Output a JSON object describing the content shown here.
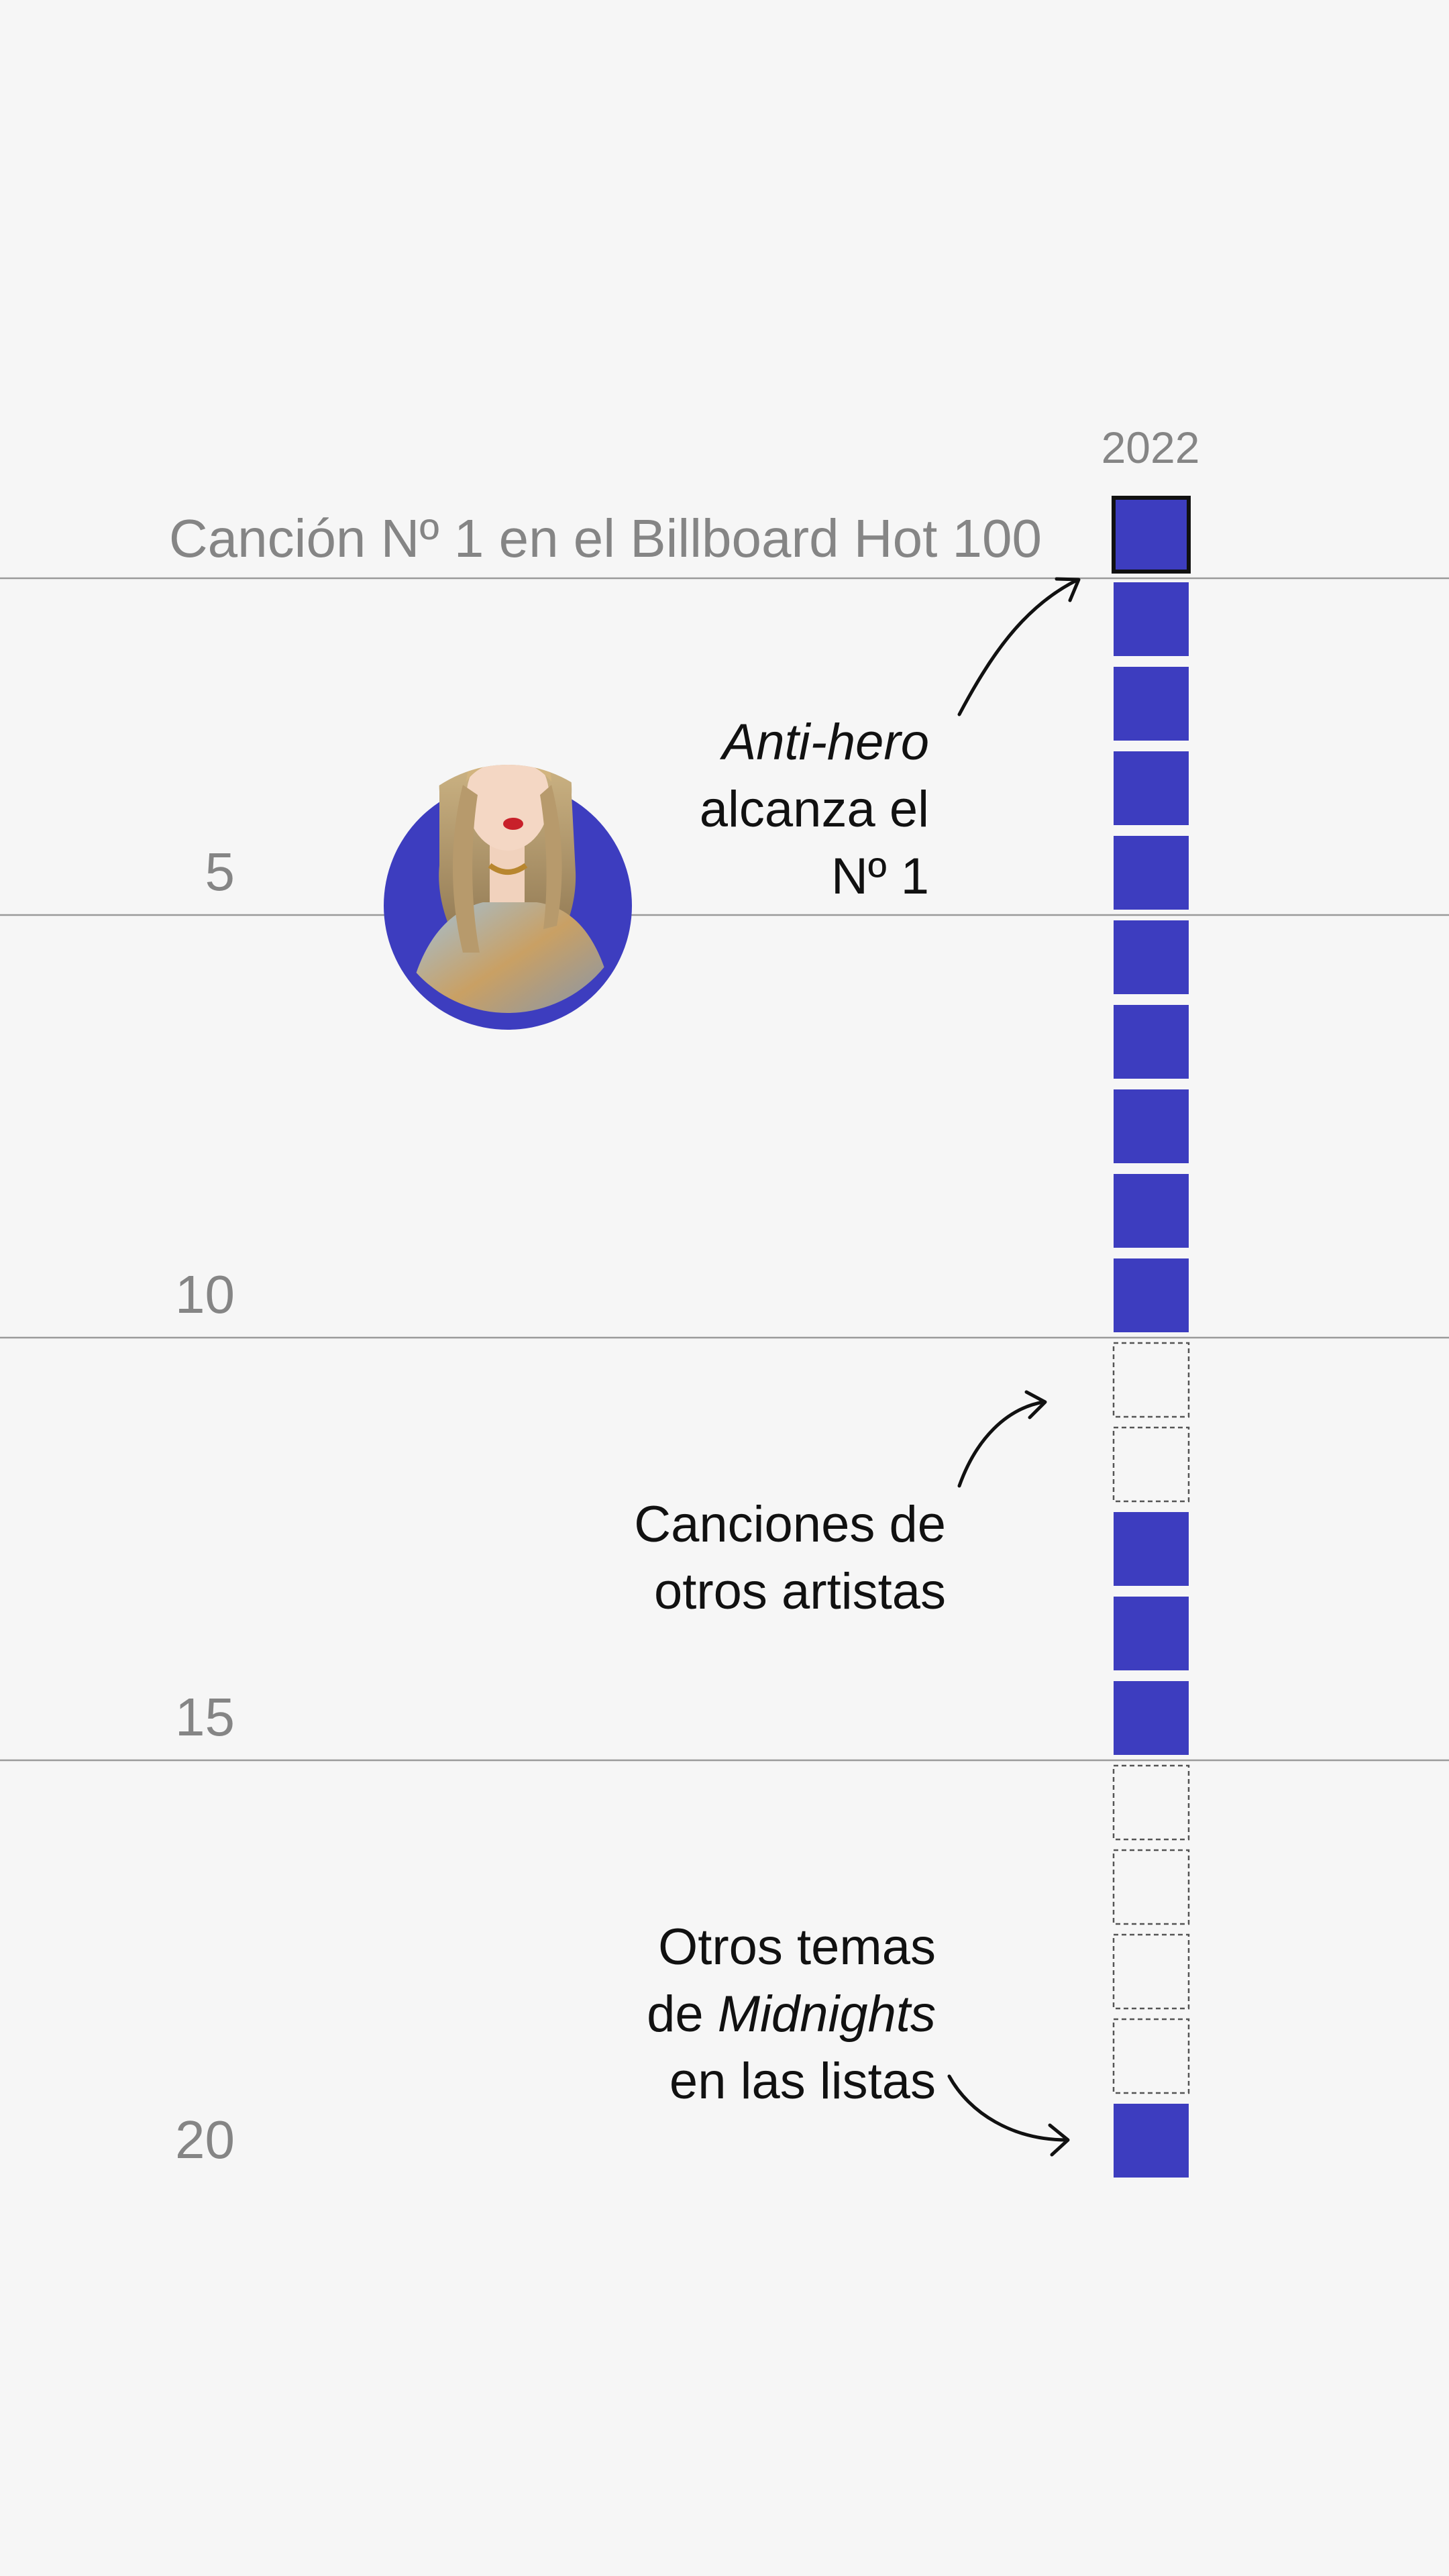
{
  "colors": {
    "background": "#f6f6f6",
    "taylor_swift_song": "#3d3dbf",
    "other_artist": "#f6f6f6",
    "highlight_border": "#111111",
    "muted_text": "#858585"
  },
  "chart_data": {
    "type": "table",
    "column_label": "2022",
    "title": "Canción Nº 1 en el Billboard Hot 100",
    "rank_ticks": [
      "5",
      "10",
      "15",
      "20"
    ],
    "ranks": [
      {
        "rank": 1,
        "status": "filled",
        "highlight": true
      },
      {
        "rank": 2,
        "status": "filled"
      },
      {
        "rank": 3,
        "status": "filled"
      },
      {
        "rank": 4,
        "status": "filled"
      },
      {
        "rank": 5,
        "status": "filled"
      },
      {
        "rank": 6,
        "status": "filled"
      },
      {
        "rank": 7,
        "status": "filled"
      },
      {
        "rank": 8,
        "status": "filled"
      },
      {
        "rank": 9,
        "status": "filled"
      },
      {
        "rank": 10,
        "status": "filled"
      },
      {
        "rank": 11,
        "status": "empty"
      },
      {
        "rank": 12,
        "status": "empty"
      },
      {
        "rank": 13,
        "status": "filled"
      },
      {
        "rank": 14,
        "status": "filled"
      },
      {
        "rank": 15,
        "status": "filled"
      },
      {
        "rank": 16,
        "status": "empty"
      },
      {
        "rank": 17,
        "status": "empty"
      },
      {
        "rank": 18,
        "status": "empty"
      },
      {
        "rank": 19,
        "status": "empty"
      },
      {
        "rank": 20,
        "status": "filled"
      }
    ],
    "annotations": {
      "anti_hero": {
        "song": "Anti-hero",
        "line1_rest": "",
        "line2": "alcanza el",
        "line3": "Nº 1",
        "points_to_rank": 1
      },
      "other_artists": {
        "line1": "Canciones de",
        "line2": "otros artistas",
        "points_to_rank": 11
      },
      "midnights": {
        "line1": "Otros temas",
        "line2_prefix": "de ",
        "album": "Midnights",
        "line3": "en las listas",
        "points_to_rank": 20
      }
    }
  }
}
